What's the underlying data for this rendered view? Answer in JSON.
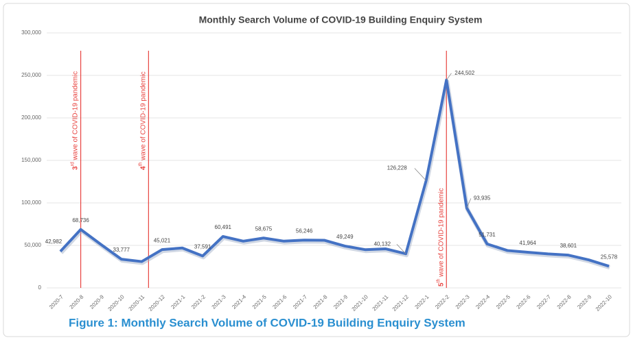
{
  "chart_data": {
    "type": "line",
    "title": "Monthly Search Volume of COVID-19  Building Enquiry System",
    "caption": "Figure 1: Monthly Search Volume of COVID-19 Building Enquiry System",
    "categories": [
      "2020-7",
      "2020-8",
      "2020-9",
      "2020-10",
      "2020-11",
      "2020-12",
      "2021-1",
      "2021-2",
      "2021-3",
      "2021-4",
      "2021-5",
      "2021-6",
      "2021-7",
      "2021-8",
      "2021-9",
      "2021-10",
      "2021-11",
      "2021-12",
      "2022-1",
      "2022-2",
      "2022-3",
      "2022-4",
      "2022-5",
      "2022-6",
      "2022-7",
      "2022-8",
      "2022-9",
      "2022-10"
    ],
    "series": [
      {
        "name": "Search volume",
        "color": "#4472c4",
        "values": [
          42982,
          68736,
          51000,
          33777,
          31000,
          45021,
          47000,
          37591,
          60491,
          55000,
          58675,
          55000,
          56246,
          56000,
          49249,
          45000,
          46000,
          40132,
          126228,
          244502,
          93935,
          51731,
          44000,
          41964,
          40000,
          38601,
          33000,
          25578
        ],
        "value_labels": [
          "42,982",
          "68,736",
          null,
          "33,777",
          null,
          "45,021",
          null,
          "37,591",
          "60,491",
          null,
          "58,675",
          null,
          "56,246",
          null,
          "49,249",
          null,
          null,
          "40,132",
          "126,228",
          "244,502",
          "93,935",
          "51,731",
          null,
          "41,964",
          null,
          "38,601",
          null,
          "25,578"
        ]
      }
    ],
    "ylim": [
      0,
      300000
    ],
    "yticks": [
      0,
      {
        "value": 50000,
        "label": "50,000"
      },
      {
        "value": 100000,
        "label": "100,000"
      },
      {
        "value": 150000,
        "label": "150,000"
      },
      {
        "value": 200000,
        "label": "200,000"
      },
      {
        "value": 250000,
        "label": "250,000"
      },
      {
        "value": 300000,
        "label": "300,000"
      }
    ],
    "grid": true,
    "annotations": [
      {
        "at": "2020-8",
        "ordinal": "3",
        "suffix": "rd",
        "text": " wave of COVID-19 pandemic",
        "color": "#e8433f"
      },
      {
        "at": "2020-11",
        "ordinal": "4",
        "suffix": "th",
        "text": " wave of COVID-19 pandemic",
        "color": "#e8433f"
      },
      {
        "at": "2022-2",
        "ordinal": "5",
        "suffix": "th",
        "text": " wave of COVID-19 pandemic",
        "color": "#e8433f"
      }
    ]
  }
}
